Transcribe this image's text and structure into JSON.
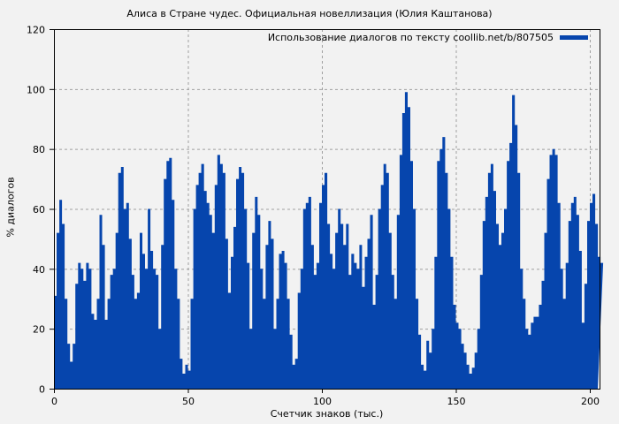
{
  "chart_data": {
    "type": "bar",
    "title": "Алиса в Стране чудес. Официальная новеллизация (Юлия Каштанова)",
    "xlabel": "Счетчик знаков (тыс.)",
    "ylabel": "% диалогов",
    "xlim": [
      0,
      204
    ],
    "ylim": [
      0,
      120
    ],
    "x_ticks": [
      0,
      50,
      100,
      150,
      200
    ],
    "y_ticks": [
      0,
      20,
      40,
      60,
      80,
      100,
      120
    ],
    "grid": true,
    "legend_position": "top-right",
    "series": [
      {
        "name": "Использование диалогов по тексту coollib.net/b/807505",
        "color": "#0645ad",
        "x_step": 1,
        "values": [
          31,
          52,
          63,
          55,
          30,
          15,
          9,
          15,
          35,
          42,
          40,
          36,
          42,
          40,
          25,
          23,
          30,
          58,
          48,
          23,
          30,
          38,
          40,
          52,
          72,
          74,
          60,
          62,
          50,
          38,
          30,
          32,
          52,
          45,
          40,
          60,
          46,
          40,
          38,
          20,
          48,
          70,
          76,
          77,
          63,
          40,
          30,
          10,
          5,
          8,
          6,
          30,
          60,
          68,
          72,
          75,
          66,
          62,
          58,
          52,
          68,
          78,
          75,
          72,
          50,
          32,
          44,
          54,
          70,
          74,
          72,
          60,
          42,
          20,
          52,
          64,
          58,
          40,
          30,
          48,
          56,
          50,
          20,
          30,
          45,
          46,
          42,
          30,
          18,
          8,
          10,
          32,
          40,
          60,
          62,
          64,
          48,
          38,
          42,
          62,
          68,
          72,
          55,
          45,
          40,
          52,
          60,
          55,
          48,
          55,
          38,
          45,
          42,
          40,
          48,
          34,
          44,
          50,
          58,
          28,
          38,
          60,
          68,
          75,
          72,
          52,
          38,
          30,
          58,
          78,
          92,
          99,
          94,
          76,
          60,
          30,
          18,
          8,
          6,
          16,
          12,
          20,
          44,
          76,
          80,
          84,
          72,
          60,
          44,
          28,
          22,
          20,
          15,
          12,
          8,
          5,
          7,
          12,
          20,
          38,
          56,
          64,
          72,
          75,
          66,
          55,
          48,
          52,
          60,
          76,
          82,
          98,
          88,
          72,
          40,
          30,
          20,
          18,
          22,
          24,
          24,
          28,
          36,
          52,
          70,
          78,
          80,
          78,
          62,
          40,
          30,
          42,
          56,
          62,
          64,
          58,
          46,
          22,
          35,
          56,
          62,
          65,
          55,
          44,
          42
        ]
      }
    ]
  },
  "legend": {
    "label": "Использование диалогов по тексту coollib.net/b/807505"
  }
}
